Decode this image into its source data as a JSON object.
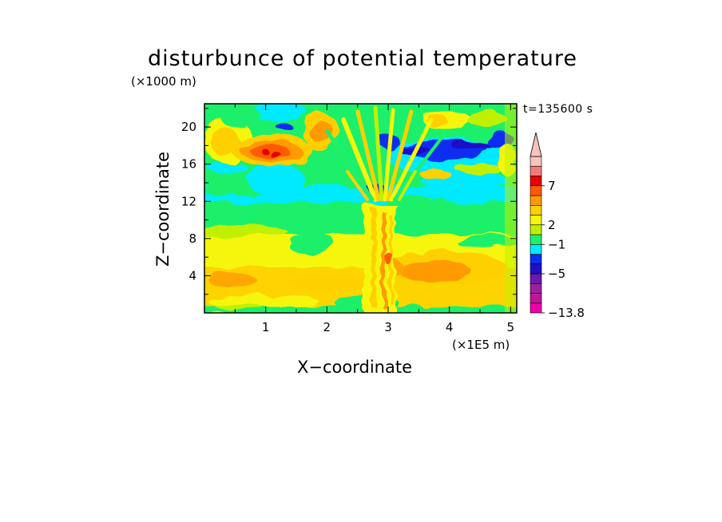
{
  "chart_data": {
    "type": "heatmap",
    "title": "disturbunce of potential temperature",
    "xlabel": "X−coordinate",
    "ylabel": "Z−coordinate",
    "x_unit": "(×1E5 m)",
    "y_unit": "(×1000 m)",
    "annotation": "t=135600 s",
    "xlim": [
      0,
      5.1
    ],
    "ylim": [
      0,
      22.5
    ],
    "x_ticks": [
      1,
      2,
      3,
      4,
      5
    ],
    "y_ticks": [
      4,
      8,
      12,
      16,
      20
    ],
    "colorbar": {
      "levels": [
        "−13.8",
        "−5",
        "−1",
        "2",
        "7"
      ],
      "colors": [
        "#ee00aa",
        "#c0159a",
        "#9b20a0",
        "#6a1ab0",
        "#1d10c8",
        "#0a2ef0",
        "#00eaff",
        "#1ff06a",
        "#c0f000",
        "#f6f60a",
        "#ffd000",
        "#ff9a00",
        "#ff5a00",
        "#e80000",
        "#f27a78",
        "#f8c2bd"
      ],
      "extend": "max"
    },
    "field_regions": [
      {
        "x": [
          0,
          5.1
        ],
        "z": [
          0,
          12
        ],
        "value": 1.0
      },
      {
        "x": [
          0,
          5.1
        ],
        "z": [
          8,
          12
        ],
        "value": 0.0
      },
      {
        "x": [
          0,
          5.1
        ],
        "z": [
          12,
          14
        ],
        "value": -1.0
      },
      {
        "x": [
          0,
          5.1
        ],
        "z": [
          14,
          22.5
        ],
        "value": 0.5
      },
      {
        "x": [
          3.3,
          5.0
        ],
        "z": [
          2,
          6.5
        ],
        "value": 2.5
      },
      {
        "x": [
          0.6,
          1.3
        ],
        "z": [
          16.5,
          18.5
        ],
        "value": 6.0
      },
      {
        "x": [
          3.0,
          4.8
        ],
        "z": [
          15.5,
          19.5
        ],
        "value": -5.0
      }
    ]
  }
}
